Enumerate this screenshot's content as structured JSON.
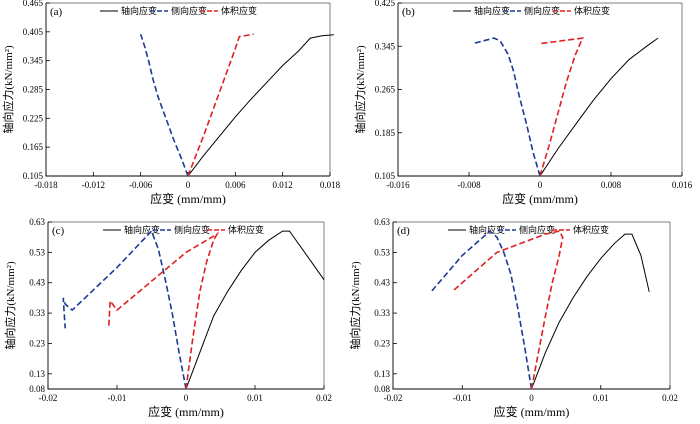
{
  "chart_data": [
    {
      "type": "line",
      "panel_label": "(a)",
      "xlabel": "应变 (mm/mm)",
      "ylabel": "轴向应力(kN/mm²)",
      "xlim": [
        -0.018,
        0.018
      ],
      "ylim": [
        0.105,
        0.465
      ],
      "xticks": [
        "-0.018",
        "-0.012",
        "-0.006",
        "0",
        "0.006",
        "0.012",
        "0.018"
      ],
      "yticks": [
        "0.105",
        "0.165",
        "0.225",
        "0.285",
        "0.345",
        "0.405",
        "0.465"
      ],
      "series": [
        {
          "name": "轴向应变",
          "color": "#000000",
          "dash": "solid",
          "x": [
            0,
            0.002,
            0.004,
            0.006,
            0.008,
            0.01,
            0.012,
            0.014,
            0.0155,
            0.017,
            0.0185
          ],
          "y": [
            0.105,
            0.148,
            0.188,
            0.228,
            0.265,
            0.3,
            0.335,
            0.365,
            0.392,
            0.397,
            0.399
          ]
        },
        {
          "name": "侧向应变",
          "color": "#1f3a93",
          "dash": "dashed",
          "x": [
            0,
            -0.0008,
            -0.0018,
            -0.0028,
            -0.0038,
            -0.0045,
            -0.005,
            -0.0055,
            -0.006
          ],
          "y": [
            0.105,
            0.14,
            0.18,
            0.225,
            0.27,
            0.31,
            0.345,
            0.375,
            0.4
          ]
        },
        {
          "name": "体积应变",
          "color": "#e02020",
          "dash": "dashed",
          "x": [
            0,
            0.002,
            0.004,
            0.006,
            0.0065,
            0.0083
          ],
          "y": [
            0.105,
            0.19,
            0.28,
            0.37,
            0.395,
            0.4
          ]
        }
      ]
    },
    {
      "type": "line",
      "panel_label": "(b)",
      "xlabel": "应变 (mm/mm)",
      "ylabel": "轴向应力(kN/mm²)",
      "xlim": [
        -0.016,
        0.016
      ],
      "ylim": [
        0.105,
        0.425
      ],
      "xticks": [
        "-0.016",
        "-0.008",
        "0",
        "0.008",
        "0.016"
      ],
      "yticks": [
        "0.105",
        "0.185",
        "0.265",
        "0.345",
        "0.425"
      ],
      "series": [
        {
          "name": "轴向应变",
          "color": "#000000",
          "dash": "solid",
          "x": [
            0,
            0.002,
            0.004,
            0.006,
            0.008,
            0.01,
            0.012,
            0.0133
          ],
          "y": [
            0.105,
            0.155,
            0.2,
            0.245,
            0.285,
            0.32,
            0.345,
            0.36
          ]
        },
        {
          "name": "侧向应变",
          "color": "#1f3a93",
          "dash": "dashed",
          "x": [
            0,
            -0.0008,
            -0.0015,
            -0.0023,
            -0.003,
            -0.0036,
            -0.0045,
            -0.0052,
            -0.0075
          ],
          "y": [
            0.105,
            0.15,
            0.2,
            0.25,
            0.3,
            0.33,
            0.355,
            0.36,
            0.35
          ]
        },
        {
          "name": "体积应变",
          "color": "#e02020",
          "dash": "dashed",
          "x": [
            0,
            0.001,
            0.002,
            0.003,
            0.004,
            0.0048,
            0.0001
          ],
          "y": [
            0.105,
            0.16,
            0.22,
            0.28,
            0.33,
            0.36,
            0.35
          ]
        }
      ]
    },
    {
      "type": "line",
      "panel_label": "(c)",
      "xlabel": "应变 (mm/mm)",
      "ylabel": "轴向应力(kN/mm²)",
      "xlim": [
        -0.02,
        0.02
      ],
      "ylim": [
        0.08,
        0.63
      ],
      "xticks": [
        "-0.02",
        "-0.01",
        "0",
        "0.01",
        "0.02"
      ],
      "yticks": [
        "0.08",
        "0.13",
        "0.23",
        "0.33",
        "0.43",
        "0.53",
        "0.63"
      ],
      "series": [
        {
          "name": "轴向应变",
          "color": "#000000",
          "dash": "solid",
          "x": [
            0,
            0.002,
            0.004,
            0.006,
            0.008,
            0.01,
            0.012,
            0.014,
            0.015,
            0.0175,
            0.02
          ],
          "y": [
            0.08,
            0.2,
            0.32,
            0.4,
            0.47,
            0.53,
            0.57,
            0.6,
            0.6,
            0.52,
            0.44
          ]
        },
        {
          "name": "侧向应变",
          "color": "#1f3a93",
          "dash": "dashed",
          "x": [
            0,
            -0.001,
            -0.002,
            -0.003,
            -0.004,
            -0.005,
            -0.01,
            -0.0165,
            -0.0175,
            -0.0178,
            -0.0175
          ],
          "y": [
            0.08,
            0.2,
            0.33,
            0.44,
            0.54,
            0.6,
            0.48,
            0.34,
            0.36,
            0.38,
            0.28
          ]
        },
        {
          "name": "体积应变",
          "color": "#e02020",
          "dash": "dashed",
          "x": [
            0,
            0.001,
            0.002,
            0.003,
            0.004,
            0.0045,
            0.0,
            -0.01,
            -0.011,
            -0.0112
          ],
          "y": [
            0.08,
            0.25,
            0.4,
            0.5,
            0.57,
            0.59,
            0.53,
            0.34,
            0.37,
            0.28
          ]
        }
      ]
    },
    {
      "type": "line",
      "panel_label": "(d)",
      "xlabel": "应变 (mm/mm)",
      "ylabel": "轴向应力(kN/mm²)",
      "xlim": [
        -0.02,
        0.02
      ],
      "ylim": [
        0.08,
        0.63
      ],
      "xticks": [
        "-0.02",
        "-0.01",
        "0",
        "0.01",
        "0.02"
      ],
      "yticks": [
        "0.08",
        "0.13",
        "0.23",
        "0.33",
        "0.43",
        "0.53",
        "0.63"
      ],
      "series": [
        {
          "name": "轴向应变",
          "color": "#000000",
          "dash": "solid",
          "x": [
            0,
            0.002,
            0.004,
            0.006,
            0.008,
            0.01,
            0.012,
            0.0135,
            0.0145,
            0.0158,
            0.017
          ],
          "y": [
            0.08,
            0.2,
            0.3,
            0.38,
            0.45,
            0.51,
            0.56,
            0.59,
            0.59,
            0.52,
            0.4
          ]
        },
        {
          "name": "侧向应变",
          "color": "#1f3a93",
          "dash": "dashed",
          "x": [
            0,
            -0.001,
            -0.002,
            -0.003,
            -0.004,
            -0.005,
            -0.006,
            -0.01,
            -0.0145
          ],
          "y": [
            0.08,
            0.22,
            0.35,
            0.46,
            0.53,
            0.58,
            0.6,
            0.52,
            0.4
          ]
        },
        {
          "name": "体积应变",
          "color": "#e02020",
          "dash": "dashed",
          "x": [
            0,
            0.001,
            0.002,
            0.003,
            0.004,
            0.0045,
            0.004,
            0.002,
            -0.005,
            -0.0115
          ],
          "y": [
            0.08,
            0.2,
            0.32,
            0.43,
            0.52,
            0.58,
            0.6,
            0.59,
            0.53,
            0.4
          ]
        }
      ]
    }
  ]
}
